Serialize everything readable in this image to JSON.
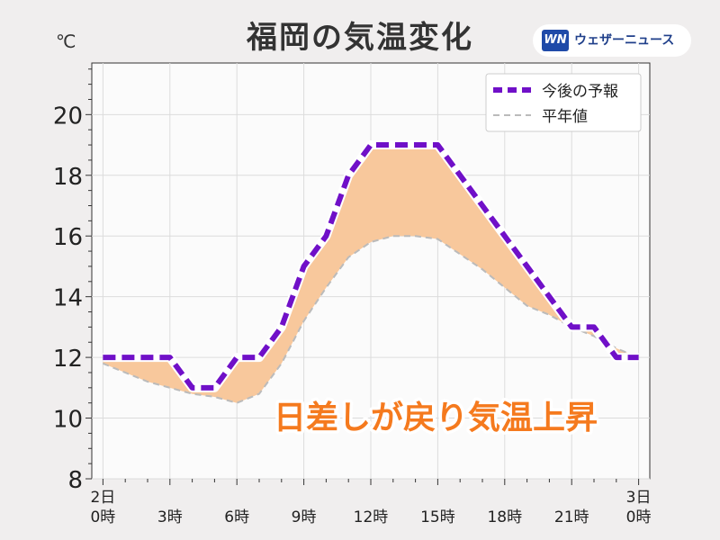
{
  "title": "福岡の気温変化",
  "logo": {
    "badge": "WN",
    "name": "ウェザーニュース"
  },
  "chart_data": {
    "type": "line",
    "unit": "℃",
    "ylim": [
      8,
      21.7
    ],
    "yticks": [
      8,
      10,
      12,
      14,
      16,
      18,
      20
    ],
    "xlim": [
      -0.5,
      24.5
    ],
    "xticks": [
      {
        "x": 0,
        "label1": "2日",
        "label2": "0時"
      },
      {
        "x": 3,
        "label1": "",
        "label2": "3時"
      },
      {
        "x": 6,
        "label1": "",
        "label2": "6時"
      },
      {
        "x": 9,
        "label1": "",
        "label2": "9時"
      },
      {
        "x": 12,
        "label1": "",
        "label2": "12時"
      },
      {
        "x": 15,
        "label1": "",
        "label2": "15時"
      },
      {
        "x": 18,
        "label1": "",
        "label2": "18時"
      },
      {
        "x": 21,
        "label1": "",
        "label2": "21時"
      },
      {
        "x": 24,
        "label1": "3日",
        "label2": "0時"
      }
    ],
    "grid": true,
    "legend_position": "top-right",
    "series": [
      {
        "name": "今後の予報",
        "color": "#7010c8",
        "style": "dashed-thick",
        "x": [
          0,
          1,
          2,
          3,
          4,
          5,
          6,
          7,
          8,
          9,
          10,
          11,
          12,
          13,
          14,
          15,
          16,
          17,
          18,
          19,
          20,
          21,
          22,
          23,
          24
        ],
        "values": [
          12,
          12,
          12,
          12,
          11,
          11,
          12,
          12,
          13,
          15,
          16,
          18,
          19,
          19,
          19,
          19,
          18,
          17,
          16,
          15,
          14,
          13,
          13,
          12,
          12
        ]
      },
      {
        "name": "平年値",
        "color": "#bbbbbb",
        "style": "dashed-thin",
        "x": [
          0,
          1,
          2,
          3,
          4,
          5,
          6,
          7,
          8,
          9,
          10,
          11,
          12,
          13,
          14,
          15,
          16,
          17,
          18,
          19,
          20,
          21,
          22,
          23,
          24
        ],
        "values": [
          11.8,
          11.5,
          11.2,
          11.0,
          10.8,
          10.7,
          10.5,
          10.8,
          11.8,
          13.2,
          14.3,
          15.3,
          15.8,
          16.0,
          16.0,
          15.9,
          15.4,
          14.9,
          14.3,
          13.7,
          13.4,
          13.0,
          12.7,
          12.3,
          12.0
        ]
      }
    ],
    "fill_color": "#f8c89c",
    "annotation": "日差しが戻り気温上昇",
    "annotation_color": "#f57a1e"
  }
}
